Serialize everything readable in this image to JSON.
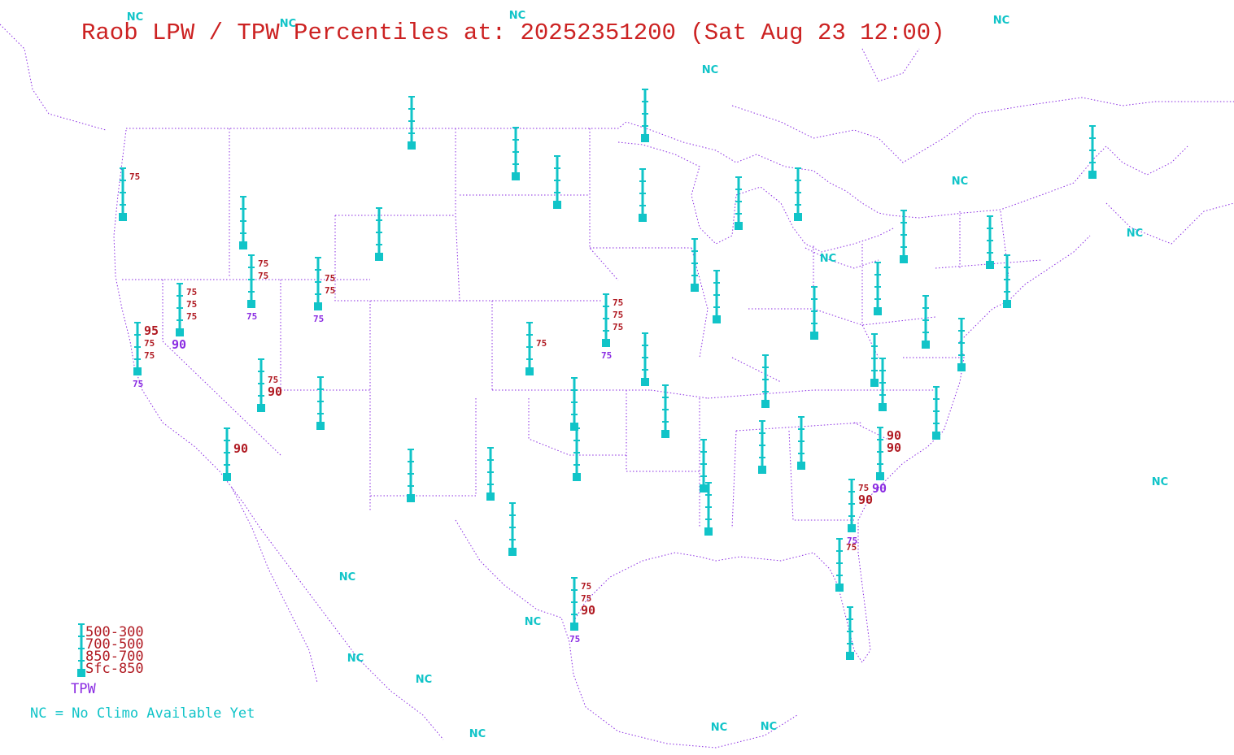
{
  "title": "Raob LPW / TPW Percentiles at: 20252351200 (Sat Aug 23 12:00)",
  "colors": {
    "title": "#cc2222",
    "station": "#11c4c8",
    "lpw_label": "#b01a22",
    "tpw_label": "#8a2be2",
    "map_lines": "#8a2be2",
    "nc": "#11c4c8"
  },
  "legend": {
    "layers": [
      "500-300",
      "700-500",
      "850-700",
      "Sfc-850"
    ],
    "tpw": "TPW",
    "nc_note": "NC = No Climo Available Yet"
  },
  "nc_label": "NC",
  "stations": [
    {
      "id": "quillayute",
      "labels": {
        "l4": "75"
      }
    },
    {
      "id": "spokane",
      "labels": {}
    },
    {
      "id": "glasgow",
      "labels": {}
    },
    {
      "id": "bismarck",
      "labels": {}
    },
    {
      "id": "aberdeen",
      "labels": {}
    },
    {
      "id": "intl-falls",
      "labels": {}
    },
    {
      "id": "chanhassen",
      "labels": {}
    },
    {
      "id": "green-bay",
      "labels": {}
    },
    {
      "id": "gaylord",
      "labels": {}
    },
    {
      "id": "boise",
      "labels": {
        "l4": "75",
        "l3": "75",
        "tpw": "75"
      }
    },
    {
      "id": "riverton",
      "labels": {}
    },
    {
      "id": "salt-lake",
      "labels": {
        "l3": "75",
        "l2": "75",
        "tpw": "75"
      }
    },
    {
      "id": "reno",
      "labels": {
        "l4": "75",
        "l3": "75",
        "l2": "75",
        "tpw": "90"
      }
    },
    {
      "id": "oakland",
      "labels": {
        "l4": "95",
        "l3": "75",
        "l2": "75",
        "tpw": "75"
      }
    },
    {
      "id": "las-vegas",
      "labels": {
        "l3": "75",
        "l2": "90"
      }
    },
    {
      "id": "denver",
      "labels": {}
    },
    {
      "id": "grand-junction",
      "labels": {}
    },
    {
      "id": "north-platte",
      "labels": {}
    },
    {
      "id": "dodge-city",
      "labels": {
        "l3": "75"
      }
    },
    {
      "id": "topeka",
      "labels": {
        "l4": "75",
        "l3": "75",
        "l2": "75",
        "tpw": "75"
      }
    },
    {
      "id": "davenport",
      "labels": {}
    },
    {
      "id": "lincoln-il",
      "labels": {}
    },
    {
      "id": "springfield",
      "labels": {}
    },
    {
      "id": "wilmington-oh",
      "labels": {}
    },
    {
      "id": "pittsburgh",
      "labels": {}
    },
    {
      "id": "buffalo",
      "labels": {}
    },
    {
      "id": "albany",
      "labels": {}
    },
    {
      "id": "caribou",
      "labels": {}
    },
    {
      "id": "upton",
      "labels": {}
    },
    {
      "id": "sterling",
      "labels": {}
    },
    {
      "id": "wallops",
      "labels": {}
    },
    {
      "id": "blacksburg",
      "labels": {}
    },
    {
      "id": "greensboro",
      "labels": {}
    },
    {
      "id": "newport",
      "labels": {}
    },
    {
      "id": "nashville",
      "labels": {}
    },
    {
      "id": "little-rock",
      "labels": {}
    },
    {
      "id": "norman",
      "labels": {}
    },
    {
      "id": "fort-worth",
      "labels": {}
    },
    {
      "id": "amarillo",
      "labels": {}
    },
    {
      "id": "albuquerque",
      "labels": {}
    },
    {
      "id": "flagstaff",
      "labels": {}
    },
    {
      "id": "tucson",
      "labels": {
        "l3": "90"
      }
    },
    {
      "id": "santa-teresa",
      "labels": {}
    },
    {
      "id": "midland",
      "labels": {}
    },
    {
      "id": "del-rio",
      "labels": {}
    },
    {
      "id": "brownsville",
      "labels": {
        "l4": "75",
        "l3": "75",
        "l2": "90",
        "tpw": "75"
      }
    },
    {
      "id": "jackson",
      "labels": {}
    },
    {
      "id": "slidell",
      "labels": {}
    },
    {
      "id": "birmingham",
      "labels": {}
    },
    {
      "id": "peachtree",
      "labels": {}
    },
    {
      "id": "charleston",
      "labels": {
        "l4": "90",
        "l3": "90",
        "tpw": "90"
      }
    },
    {
      "id": "jacksonville",
      "labels": {
        "l4": "75",
        "l3": "90",
        "tpw": "75"
      }
    },
    {
      "id": "tampa",
      "labels": {
        "l4": "75"
      }
    },
    {
      "id": "miami",
      "labels": {}
    }
  ]
}
